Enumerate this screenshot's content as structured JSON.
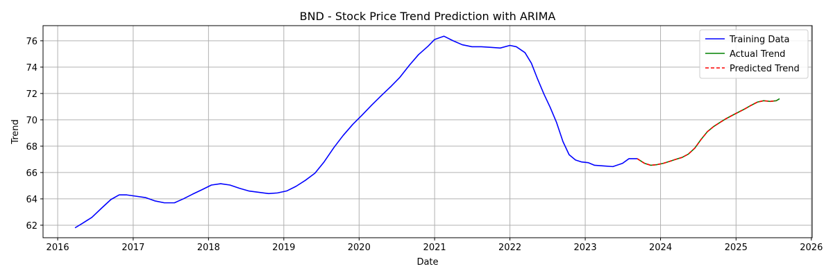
{
  "chart_data": {
    "type": "line",
    "title": "BND - Stock Price Trend Prediction with ARIMA",
    "xlabel": "Date",
    "ylabel": "Trend",
    "xlim": [
      "2015-10-22",
      "2026-01-05"
    ],
    "ylim": [
      61.05,
      77.15
    ],
    "x_ticks": [
      "2016",
      "2017",
      "2018",
      "2019",
      "2020",
      "2021",
      "2022",
      "2023",
      "2024",
      "2025",
      "2026"
    ],
    "y_ticks": [
      62,
      64,
      66,
      68,
      70,
      72,
      74,
      76
    ],
    "grid": true,
    "legend_position": "top-right",
    "series": [
      {
        "name": "Training Data",
        "color": "#0000ff",
        "style": "solid",
        "points": [
          [
            "2016-03-25",
            61.8
          ],
          [
            "2016-05-01",
            62.15
          ],
          [
            "2016-06-15",
            62.6
          ],
          [
            "2016-08-01",
            63.3
          ],
          [
            "2016-09-15",
            63.95
          ],
          [
            "2016-10-25",
            64.3
          ],
          [
            "2016-12-01",
            64.3
          ],
          [
            "2017-01-15",
            64.2
          ],
          [
            "2017-03-01",
            64.1
          ],
          [
            "2017-04-15",
            63.85
          ],
          [
            "2017-06-01",
            63.7
          ],
          [
            "2017-07-20",
            63.7
          ],
          [
            "2017-09-01",
            64.0
          ],
          [
            "2017-10-15",
            64.35
          ],
          [
            "2017-12-01",
            64.7
          ],
          [
            "2018-01-15",
            65.05
          ],
          [
            "2018-03-01",
            65.15
          ],
          [
            "2018-04-15",
            65.05
          ],
          [
            "2018-06-01",
            64.8
          ],
          [
            "2018-07-15",
            64.6
          ],
          [
            "2018-09-01",
            64.5
          ],
          [
            "2018-10-20",
            64.4
          ],
          [
            "2018-12-01",
            64.45
          ],
          [
            "2019-01-15",
            64.6
          ],
          [
            "2019-03-01",
            64.95
          ],
          [
            "2019-04-15",
            65.4
          ],
          [
            "2019-06-01",
            65.95
          ],
          [
            "2019-07-15",
            66.8
          ],
          [
            "2019-09-01",
            67.9
          ],
          [
            "2019-10-15",
            68.8
          ],
          [
            "2019-12-01",
            69.65
          ],
          [
            "2020-01-15",
            70.35
          ],
          [
            "2020-03-01",
            71.1
          ],
          [
            "2020-04-15",
            71.8
          ],
          [
            "2020-06-01",
            72.5
          ],
          [
            "2020-07-15",
            73.2
          ],
          [
            "2020-09-01",
            74.15
          ],
          [
            "2020-10-15",
            74.95
          ],
          [
            "2020-12-01",
            75.6
          ],
          [
            "2021-01-01",
            76.1
          ],
          [
            "2021-02-15",
            76.35
          ],
          [
            "2021-04-01",
            76.0
          ],
          [
            "2021-05-15",
            75.7
          ],
          [
            "2021-07-01",
            75.55
          ],
          [
            "2021-08-15",
            75.55
          ],
          [
            "2021-10-01",
            75.5
          ],
          [
            "2021-11-15",
            75.45
          ],
          [
            "2022-01-01",
            75.65
          ],
          [
            "2022-02-01",
            75.55
          ],
          [
            "2022-03-15",
            75.1
          ],
          [
            "2022-04-15",
            74.3
          ],
          [
            "2022-05-15",
            73.1
          ],
          [
            "2022-06-15",
            71.95
          ],
          [
            "2022-07-15",
            70.95
          ],
          [
            "2022-08-15",
            69.8
          ],
          [
            "2022-09-15",
            68.35
          ],
          [
            "2022-10-15",
            67.35
          ],
          [
            "2022-11-15",
            66.95
          ],
          [
            "2022-12-15",
            66.8
          ],
          [
            "2023-01-15",
            66.75
          ],
          [
            "2023-02-15",
            66.55
          ],
          [
            "2023-04-01",
            66.5
          ],
          [
            "2023-05-15",
            66.45
          ],
          [
            "2023-07-01",
            66.7
          ],
          [
            "2023-08-01",
            67.05
          ],
          [
            "2023-09-10",
            67.05
          ]
        ]
      },
      {
        "name": "Actual Trend",
        "color": "#008000",
        "style": "solid",
        "points": [
          [
            "2023-09-10",
            67.05
          ],
          [
            "2023-10-15",
            66.7
          ],
          [
            "2023-11-15",
            66.55
          ],
          [
            "2023-12-15",
            66.6
          ],
          [
            "2024-01-15",
            66.7
          ],
          [
            "2024-02-15",
            66.85
          ],
          [
            "2024-03-15",
            67.0
          ],
          [
            "2024-04-15",
            67.15
          ],
          [
            "2024-05-15",
            67.4
          ],
          [
            "2024-06-15",
            67.85
          ],
          [
            "2024-07-15",
            68.5
          ],
          [
            "2024-08-15",
            69.1
          ],
          [
            "2024-09-15",
            69.5
          ],
          [
            "2024-10-15",
            69.8
          ],
          [
            "2024-11-15",
            70.1
          ],
          [
            "2024-12-15",
            70.35
          ],
          [
            "2025-01-15",
            70.6
          ],
          [
            "2025-02-15",
            70.85
          ],
          [
            "2025-03-15",
            71.1
          ],
          [
            "2025-04-15",
            71.35
          ],
          [
            "2025-05-15",
            71.45
          ],
          [
            "2025-06-15",
            71.4
          ],
          [
            "2025-07-15",
            71.45
          ],
          [
            "2025-07-31",
            71.6
          ]
        ]
      },
      {
        "name": "Predicted Trend",
        "color": "#ff0000",
        "style": "dashed",
        "points": [
          [
            "2023-09-10",
            67.05
          ],
          [
            "2023-10-15",
            66.7
          ],
          [
            "2023-11-15",
            66.55
          ],
          [
            "2023-12-15",
            66.6
          ],
          [
            "2024-01-15",
            66.7
          ],
          [
            "2024-02-15",
            66.85
          ],
          [
            "2024-03-15",
            67.0
          ],
          [
            "2024-04-15",
            67.15
          ],
          [
            "2024-05-15",
            67.4
          ],
          [
            "2024-06-15",
            67.85
          ],
          [
            "2024-07-15",
            68.5
          ],
          [
            "2024-08-15",
            69.1
          ],
          [
            "2024-09-15",
            69.5
          ],
          [
            "2024-10-15",
            69.8
          ],
          [
            "2024-11-15",
            70.1
          ],
          [
            "2024-12-15",
            70.35
          ],
          [
            "2025-01-15",
            70.6
          ],
          [
            "2025-02-15",
            70.85
          ],
          [
            "2025-03-15",
            71.1
          ],
          [
            "2025-04-15",
            71.35
          ],
          [
            "2025-05-15",
            71.45
          ],
          [
            "2025-06-15",
            71.4
          ],
          [
            "2025-07-15",
            71.45
          ]
        ]
      }
    ]
  }
}
